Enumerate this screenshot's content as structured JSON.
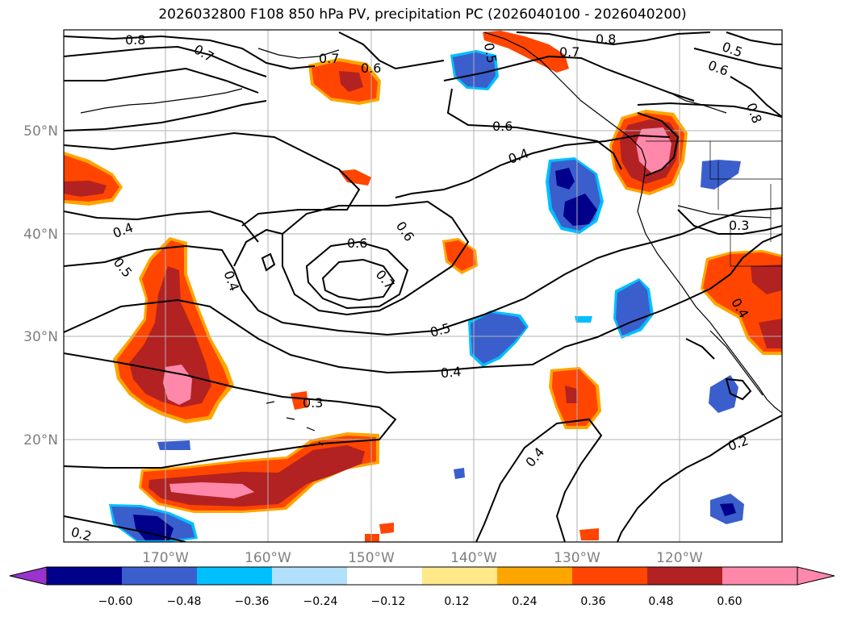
{
  "title": "2026032800 F108 850 hPa PV, precipitation PC (2026040100 - 2026040200)",
  "latitude_labels": [
    "50°N",
    "40°N",
    "30°N",
    "20°N"
  ],
  "longitude_labels": [
    "170°W",
    "160°W",
    "150°W",
    "140°W",
    "130°W",
    "120°W"
  ],
  "contour_labels": [
    "0.8",
    "0.7",
    "0.6",
    "0.5",
    "0.8",
    "0.7",
    "0.6",
    "0.5",
    "0.7",
    "0.8",
    "0.6",
    "0.4",
    "0.6",
    "0.6",
    "0.7",
    "0.4",
    "0.5",
    "0.4",
    "0.5",
    "0.4",
    "0.3",
    "0.4",
    "0.3",
    "0.4",
    "0.2",
    "0.2"
  ],
  "colorbar": {
    "ticks": [
      "−0.60",
      "−0.48",
      "−0.36",
      "−0.24",
      "−0.12",
      "0.12",
      "0.24",
      "0.36",
      "0.48",
      "0.60"
    ],
    "colors": [
      "#9933cc",
      "#00008b",
      "#3a5fcd",
      "#00bfff",
      "#b0e0fa",
      "#ffffff",
      "#ffe98a",
      "#ffa500",
      "#ff4500",
      "#b22222",
      "#ff88aa",
      "#ff88aa"
    ]
  },
  "shading_colors": {
    "neg_weak": "#00bfff",
    "neg_mid": "#3a5fcd",
    "neg_strong": "#00008b",
    "pos_weak": "#ffa500",
    "pos_mid": "#ff4500",
    "pos_strong": "#b22222",
    "pos_max": "#ff88aa"
  }
}
